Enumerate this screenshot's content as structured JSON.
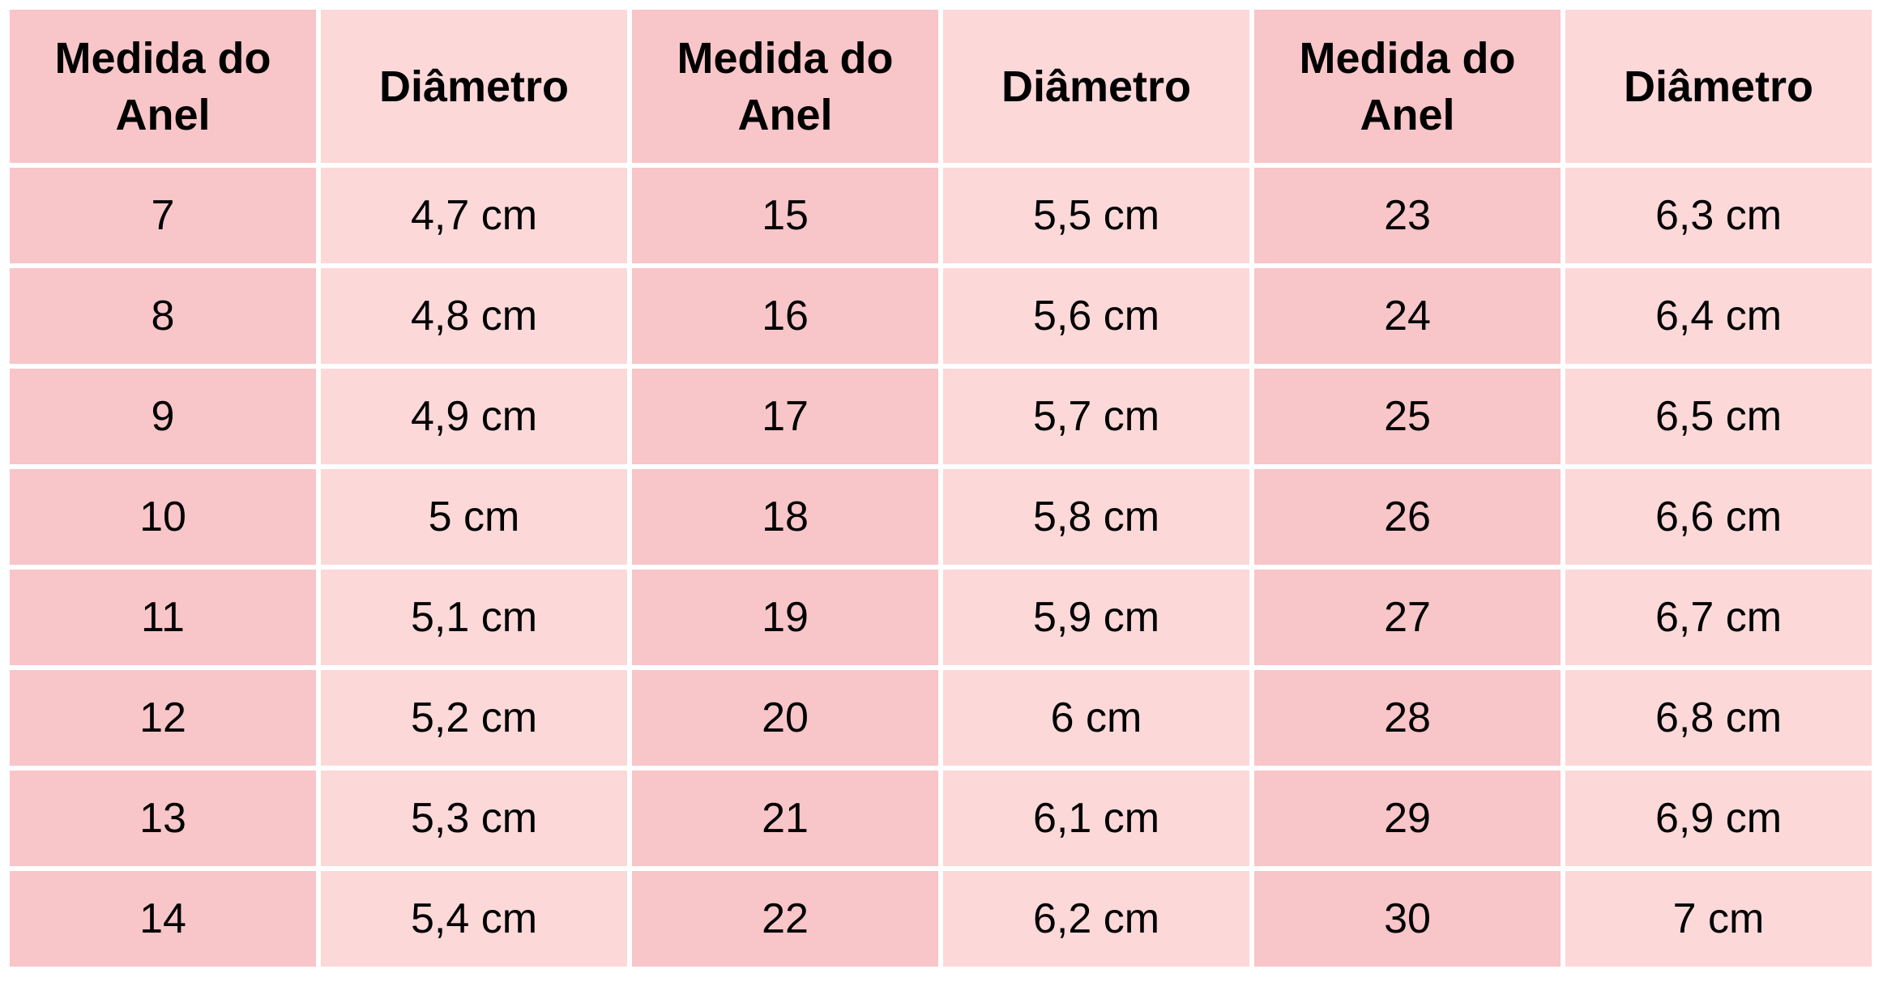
{
  "table": {
    "headers": [
      "Medida do Anel",
      "Diâmetro",
      "Medida do Anel",
      "Diâmetro",
      "Medida do Anel",
      "Diâmetro"
    ],
    "rows": [
      [
        "7",
        "4,7 cm",
        "15",
        "5,5 cm",
        "23",
        "6,3 cm"
      ],
      [
        "8",
        "4,8 cm",
        "16",
        "5,6 cm",
        "24",
        "6,4 cm"
      ],
      [
        "9",
        "4,9 cm",
        "17",
        "5,7 cm",
        "25",
        "6,5 cm"
      ],
      [
        "10",
        "5 cm",
        "18",
        "5,8 cm",
        "26",
        "6,6 cm"
      ],
      [
        "11",
        "5,1 cm",
        "19",
        "5,9 cm",
        "27",
        "6,7 cm"
      ],
      [
        "12",
        "5,2 cm",
        "20",
        "6 cm",
        "28",
        "6,8 cm"
      ],
      [
        "13",
        "5,3 cm",
        "21",
        "6,1 cm",
        "29",
        "6,9 cm"
      ],
      [
        "14",
        "5,4 cm",
        "22",
        "6,2 cm",
        "30",
        "7 cm"
      ]
    ]
  },
  "colors": {
    "size_column": "#f8c5c8",
    "diameter_column": "#fcd8d9"
  }
}
